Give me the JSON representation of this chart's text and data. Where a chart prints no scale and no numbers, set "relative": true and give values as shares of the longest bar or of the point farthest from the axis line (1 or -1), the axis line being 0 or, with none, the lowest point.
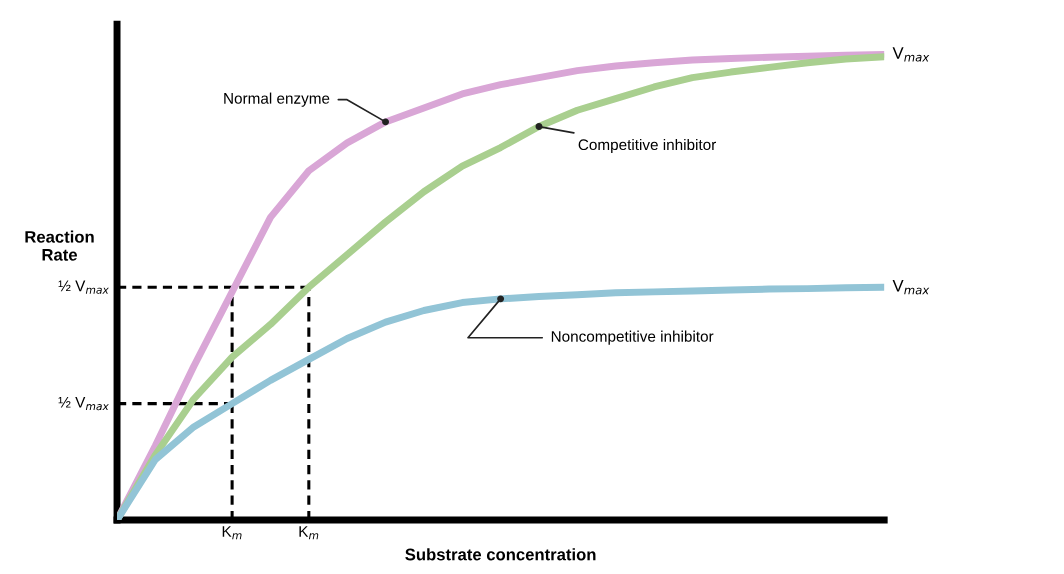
{
  "chart_data": {
    "type": "line",
    "relative": true,
    "xlabel": "Substrate concentration",
    "ylabel": "Reaction\nRate",
    "categories": [
      null,
      null,
      null,
      "K$_{m}$",
      null,
      "K$_{m}$",
      null,
      null,
      null,
      null,
      null,
      null,
      null,
      null,
      null,
      null,
      null,
      null,
      null,
      null,
      null
    ],
    "series": [
      {
        "name": "Normal enzyme",
        "color": "#d9a6d6",
        "values": [
          0,
          0.16,
          0.33,
          0.49,
          0.65,
          0.75,
          0.81,
          0.855,
          0.885,
          0.915,
          0.935,
          0.95,
          0.965,
          0.975,
          0.982,
          0.988,
          0.991,
          0.994,
          0.996,
          0.998,
          1.0
        ]
      },
      {
        "name": "Competitive inhibitor",
        "color": "#a9cf8f",
        "values": [
          0,
          0.14,
          0.26,
          0.35,
          0.42,
          0.5,
          0.57,
          0.64,
          0.705,
          0.76,
          0.8,
          0.845,
          0.88,
          0.905,
          0.93,
          0.95,
          0.962,
          0.972,
          0.982,
          0.99,
          0.995
        ]
      },
      {
        "name": "Noncompetitive inhibitor",
        "color": "#92c4d6",
        "values": [
          0,
          0.13,
          0.2,
          0.25,
          0.3,
          0.345,
          0.39,
          0.425,
          0.45,
          0.467,
          0.475,
          0.48,
          0.484,
          0.488,
          0.49,
          0.492,
          0.494,
          0.496,
          0.497,
          0.499,
          0.5
        ]
      }
    ],
    "ref_lines": [
      {
        "axis": "y",
        "value": 0.5,
        "label": "½ V$_{max}$",
        "line_style": "dashed",
        "color": "#000000"
      },
      {
        "axis": "y",
        "value": 0.25,
        "label": "½ V$_{max}$",
        "line_style": "dashed",
        "color": "#000000"
      }
    ],
    "annotations": [
      "V$_{max}$",
      "V$_{max}$"
    ],
    "legend": false,
    "grid": false,
    "marker": "none",
    "line_style": "solid"
  }
}
